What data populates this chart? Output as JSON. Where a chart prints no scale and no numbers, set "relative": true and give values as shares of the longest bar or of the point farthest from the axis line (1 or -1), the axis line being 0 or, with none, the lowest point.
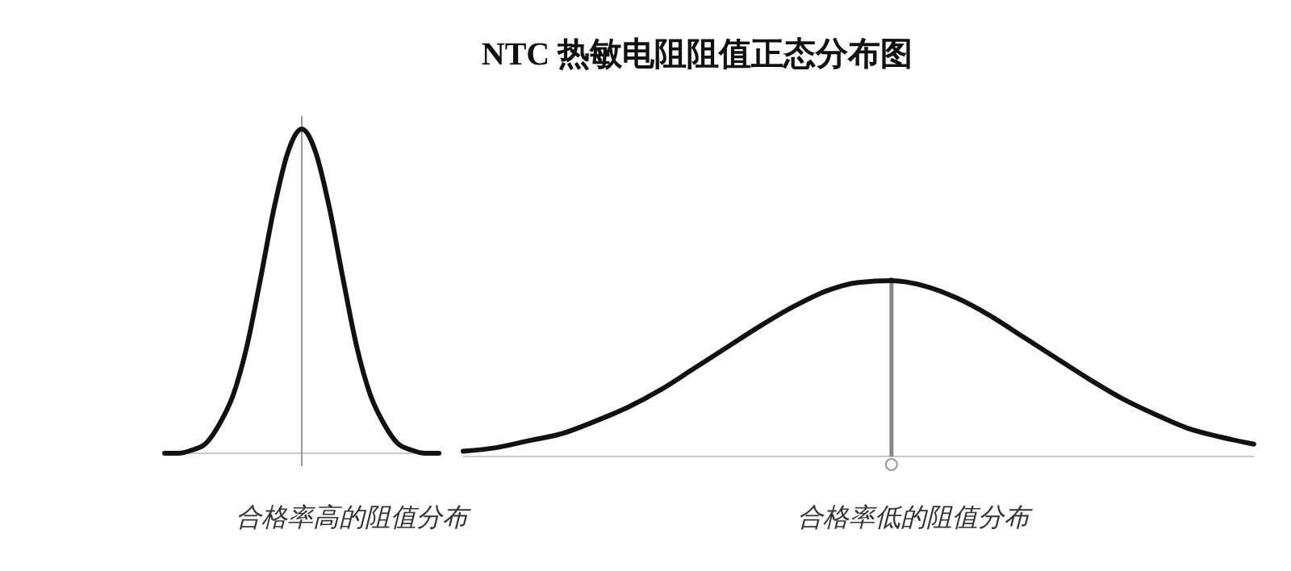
{
  "chart_data": [
    {
      "type": "line",
      "xlabel": "合格率高的阻值分布",
      "relative": true,
      "color": "#111111",
      "categories": [
        null,
        null,
        null,
        null,
        null,
        null,
        null,
        null,
        null,
        null,
        null,
        null,
        null,
        null,
        null,
        null,
        null,
        null,
        null,
        null,
        null
      ],
      "values": [
        0,
        0,
        0.01,
        0.03,
        0.09,
        0.18,
        0.33,
        0.54,
        0.76,
        0.93,
        1,
        0.93,
        0.76,
        0.54,
        0.33,
        0.18,
        0.09,
        0.03,
        0.01,
        0,
        0
      ]
    },
    {
      "type": "line",
      "title": "NTC 热敏电阻阻值正态分布图",
      "xlabel": "合格率低的阻值分布",
      "relative": true,
      "color": "#111111",
      "categories": [
        null,
        null,
        null,
        null,
        null,
        null,
        null,
        null,
        null,
        null,
        null,
        null,
        null,
        null,
        null,
        null,
        null,
        null,
        null,
        null,
        null,
        null,
        null,
        null,
        null
      ],
      "values": [
        0.03,
        0.05,
        0.09,
        0.13,
        0.2,
        0.28,
        0.38,
        0.5,
        0.62,
        0.74,
        0.85,
        0.94,
        0.99,
        1,
        0.97,
        0.9,
        0.8,
        0.68,
        0.56,
        0.44,
        0.33,
        0.24,
        0.16,
        0.11,
        0.07
      ]
    }
  ]
}
